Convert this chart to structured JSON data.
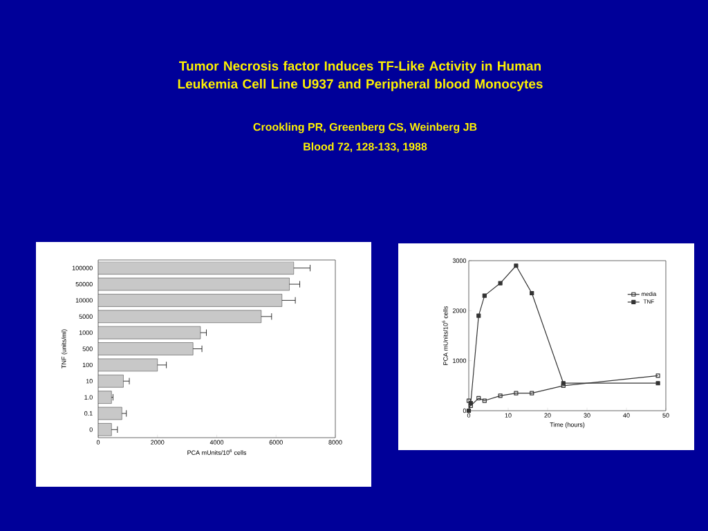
{
  "chart_data": [
    {
      "type": "bar",
      "orientation": "horizontal",
      "title": "Tumor Necrosis factor Induces TF-Like Activity in Human Leukemia Cell Line U937 and Peripheral blood Monocytes",
      "subtitle": "Crookling PR, Greenberg CS, Weinberg JB",
      "annotations": [
        "Blood 72, 128-133, 1988"
      ],
      "categories": [
        "100000",
        "50000",
        "10000",
        "5000",
        "1000",
        "500",
        "100",
        "10",
        "1.0",
        "0.1",
        "0"
      ],
      "values": [
        6600,
        6450,
        6200,
        5500,
        3450,
        3200,
        2000,
        850,
        450,
        800,
        450
      ],
      "errors": [
        [
          6600,
          7150
        ],
        [
          6450,
          6800
        ],
        [
          6200,
          6650
        ],
        [
          5500,
          5850
        ],
        [
          3450,
          3650
        ],
        [
          3200,
          3500
        ],
        [
          2000,
          2300
        ],
        [
          850,
          1050
        ],
        [
          450,
          500
        ],
        [
          800,
          950
        ],
        [
          450,
          650
        ]
      ],
      "color": "#c8c8c8",
      "xlim": [
        0,
        8000
      ],
      "xticks": [
        0,
        2000,
        4000,
        6000,
        8000
      ],
      "xlabel": "PCA mUnits/10$^{6}$ cells",
      "ylabel": "TNF (units/ml)"
    },
    {
      "type": "line",
      "marker": "square",
      "legend": "right",
      "x": [
        0,
        0.5,
        2.5,
        4,
        8,
        12,
        16,
        24,
        48
      ],
      "series": [
        {
          "name": "media",
          "color": "#333333",
          "values": [
            200,
            100,
            250,
            200,
            300,
            350,
            350,
            500,
            700
          ]
        },
        {
          "name": "TNF",
          "color": "#333333",
          "values": [
            0,
            150,
            1900,
            2300,
            2550,
            2900,
            2350,
            550,
            550
          ]
        }
      ],
      "xlim": [
        0,
        50
      ],
      "xticks": [
        0,
        10,
        20,
        30,
        40,
        50
      ],
      "ylim": [
        0,
        3000
      ],
      "yticks": [
        0,
        1000,
        2000,
        3000
      ],
      "xlabel": "Time (hours)",
      "ylabel": "PCA mUnits/10$^{6}$ cells"
    }
  ]
}
